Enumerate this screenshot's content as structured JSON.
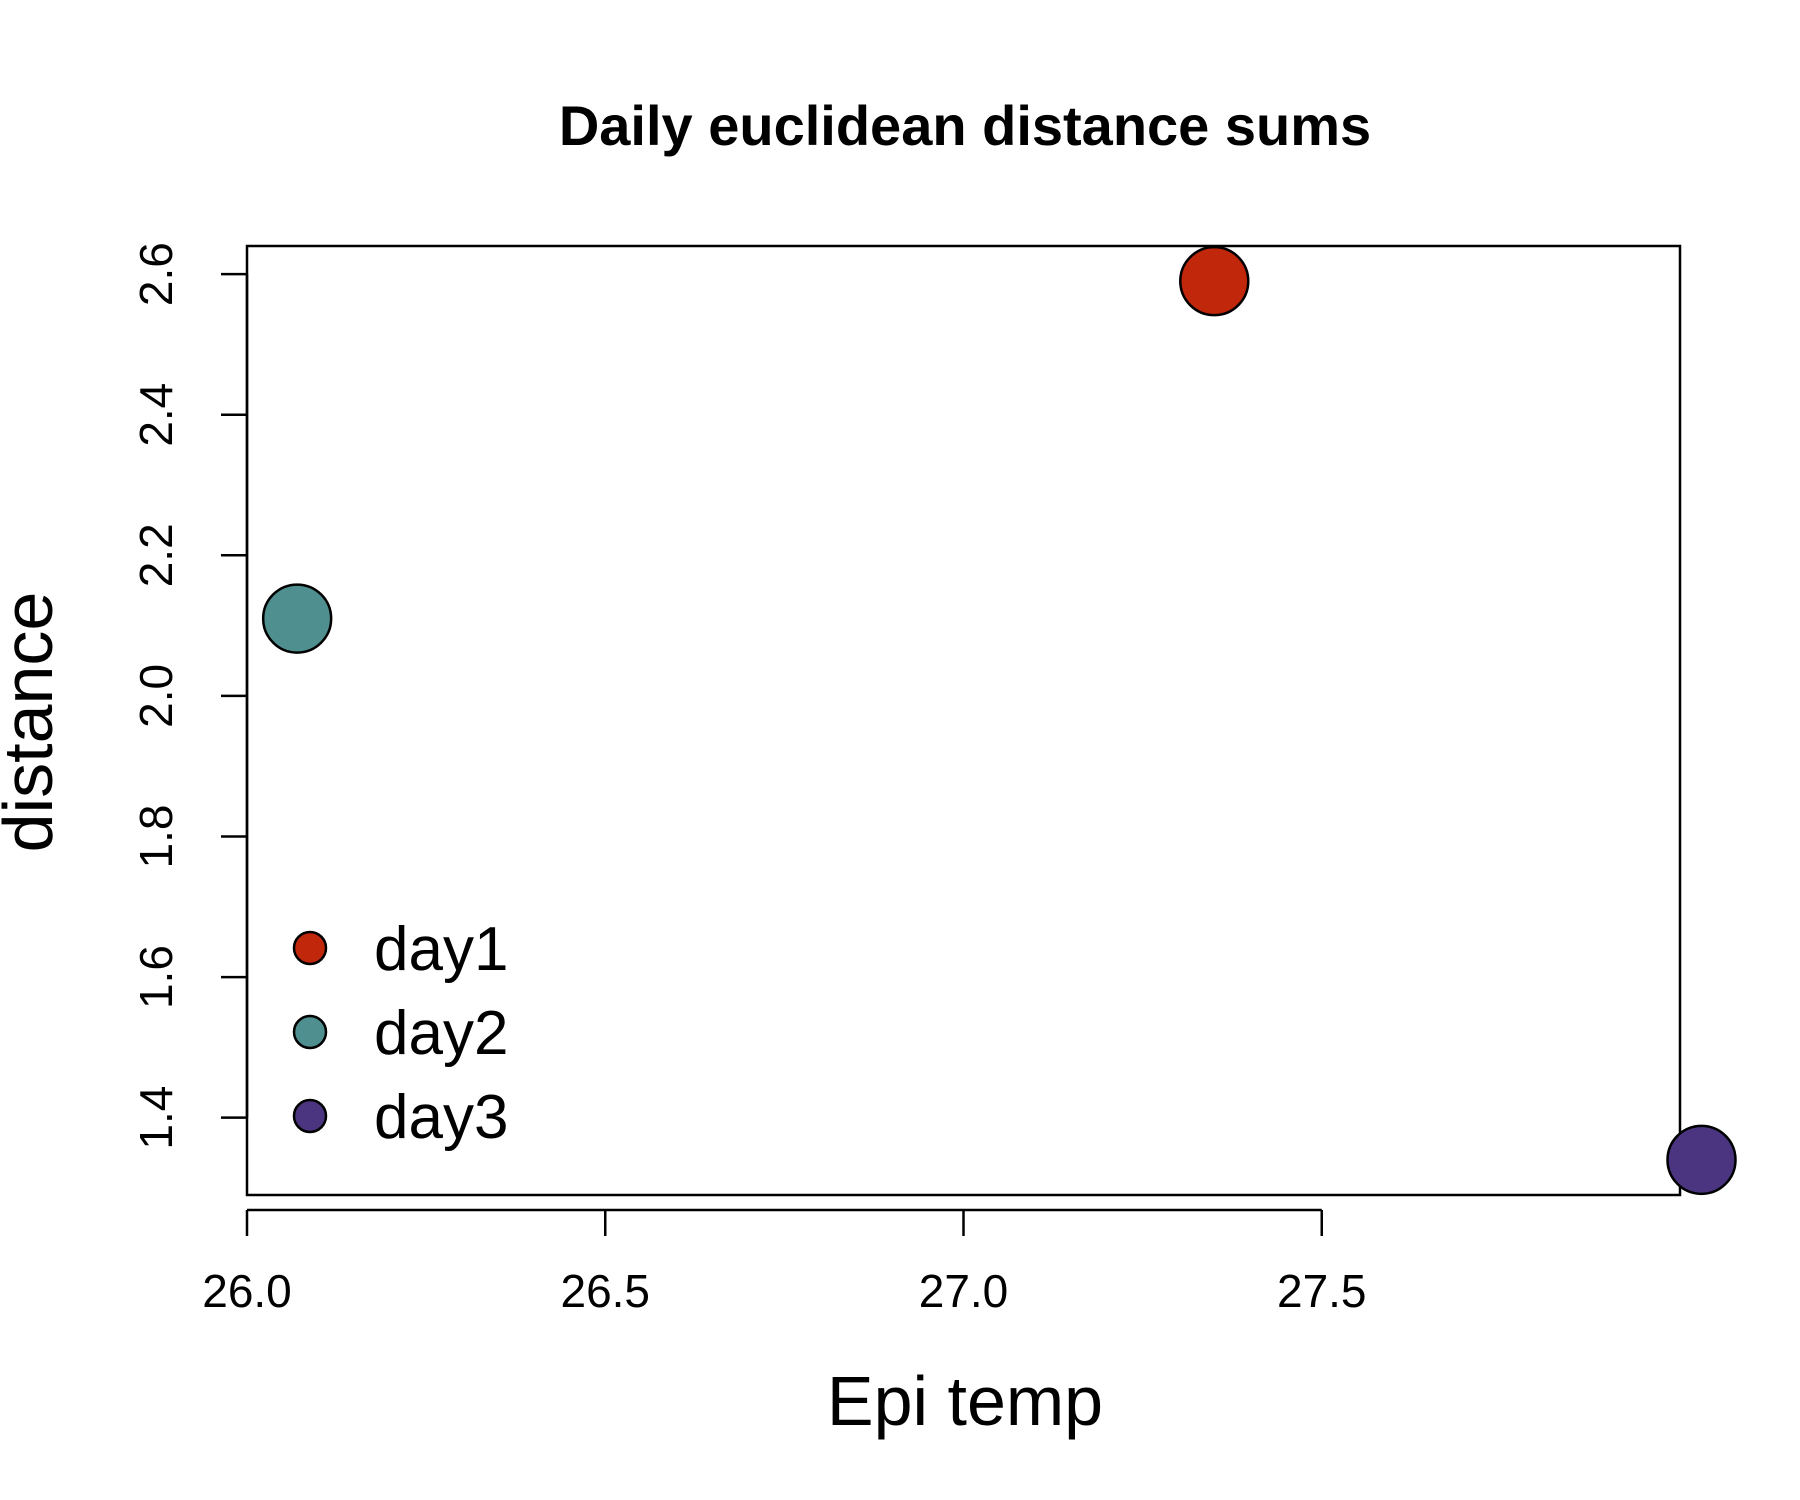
{
  "chart_data": {
    "type": "scatter",
    "title": "Daily euclidean distance sums",
    "xlabel": "Epi temp",
    "ylabel": "distance",
    "xlim": [
      26.0,
      28.0
    ],
    "ylim": [
      1.29,
      2.64
    ],
    "x_ticks": [
      26.0,
      26.5,
      27.0,
      27.5
    ],
    "x_tick_labels": [
      "26.0",
      "26.5",
      "27.0",
      "27.5"
    ],
    "y_ticks": [
      1.4,
      1.6,
      1.8,
      2.0,
      2.2,
      2.4,
      2.6
    ],
    "y_tick_labels": [
      "1.4",
      "1.6",
      "1.8",
      "2.0",
      "2.2",
      "2.4",
      "2.6"
    ],
    "grid": false,
    "legend_position": "bottom-left",
    "series": [
      {
        "name": "day1",
        "color": "#C1270A",
        "x": [
          27.35
        ],
        "y": [
          2.59
        ]
      },
      {
        "name": "day2",
        "color": "#4F8F8F",
        "x": [
          26.07
        ],
        "y": [
          2.11
        ]
      },
      {
        "name": "day3",
        "color": "#4B3580",
        "x": [
          28.03
        ],
        "y": [
          1.34
        ]
      }
    ]
  }
}
